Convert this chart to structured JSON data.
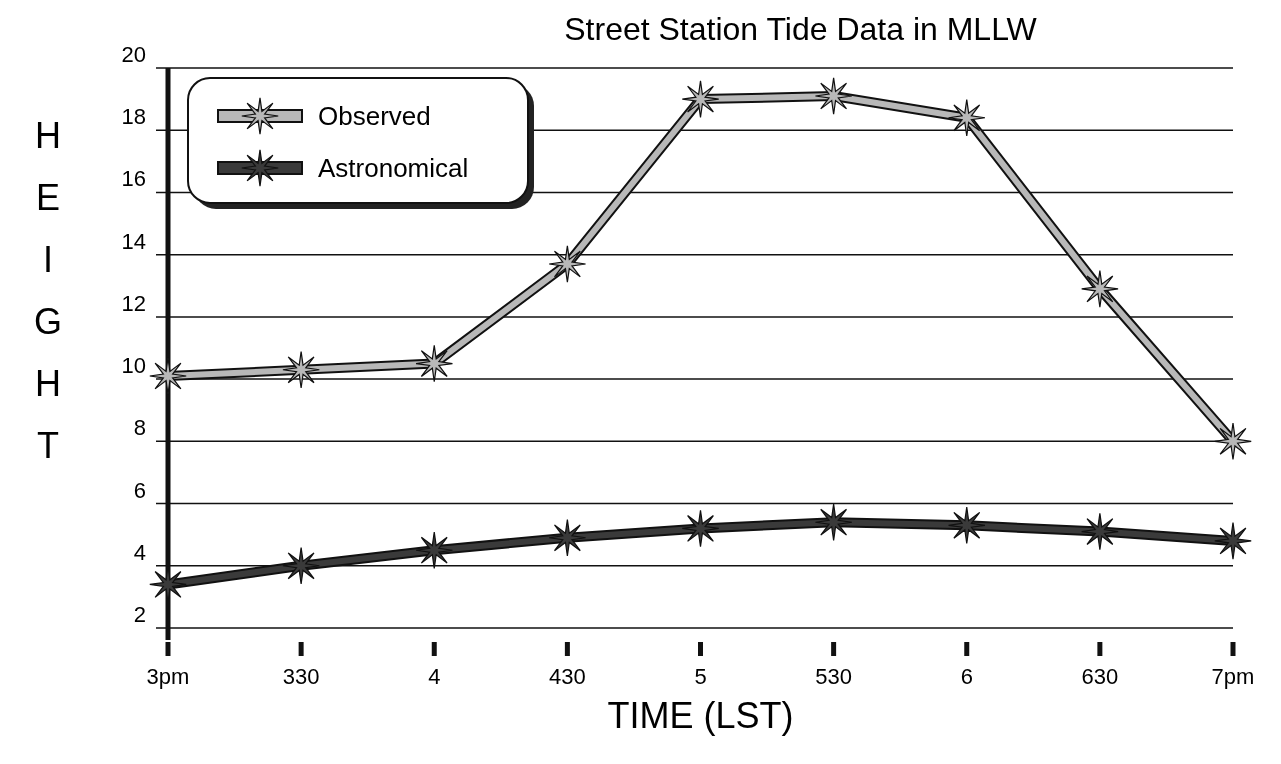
{
  "chart_data": {
    "type": "line",
    "title": "Street Station Tide Data in MLLW",
    "xlabel": "TIME (LST)",
    "ylabel": "HEIGHT",
    "categories": [
      "3pm",
      "330",
      "4",
      "430",
      "5",
      "530",
      "6",
      "630",
      "7pm"
    ],
    "series": [
      {
        "name": "Observed",
        "color": "#b8b8b8",
        "values": [
          10.1,
          10.3,
          10.5,
          13.7,
          19.0,
          19.1,
          18.4,
          12.9,
          8.0
        ]
      },
      {
        "name": "Astronomical",
        "color": "#3a3a3a",
        "values": [
          3.4,
          4.0,
          4.5,
          4.9,
          5.2,
          5.4,
          5.3,
          5.1,
          4.8
        ]
      }
    ],
    "ylim": [
      2,
      20
    ],
    "yticks": [
      2,
      4,
      6,
      8,
      10,
      12,
      14,
      16,
      18,
      20
    ],
    "grid": "y",
    "legend": "top left",
    "marker": "star",
    "line_style": "solid"
  }
}
